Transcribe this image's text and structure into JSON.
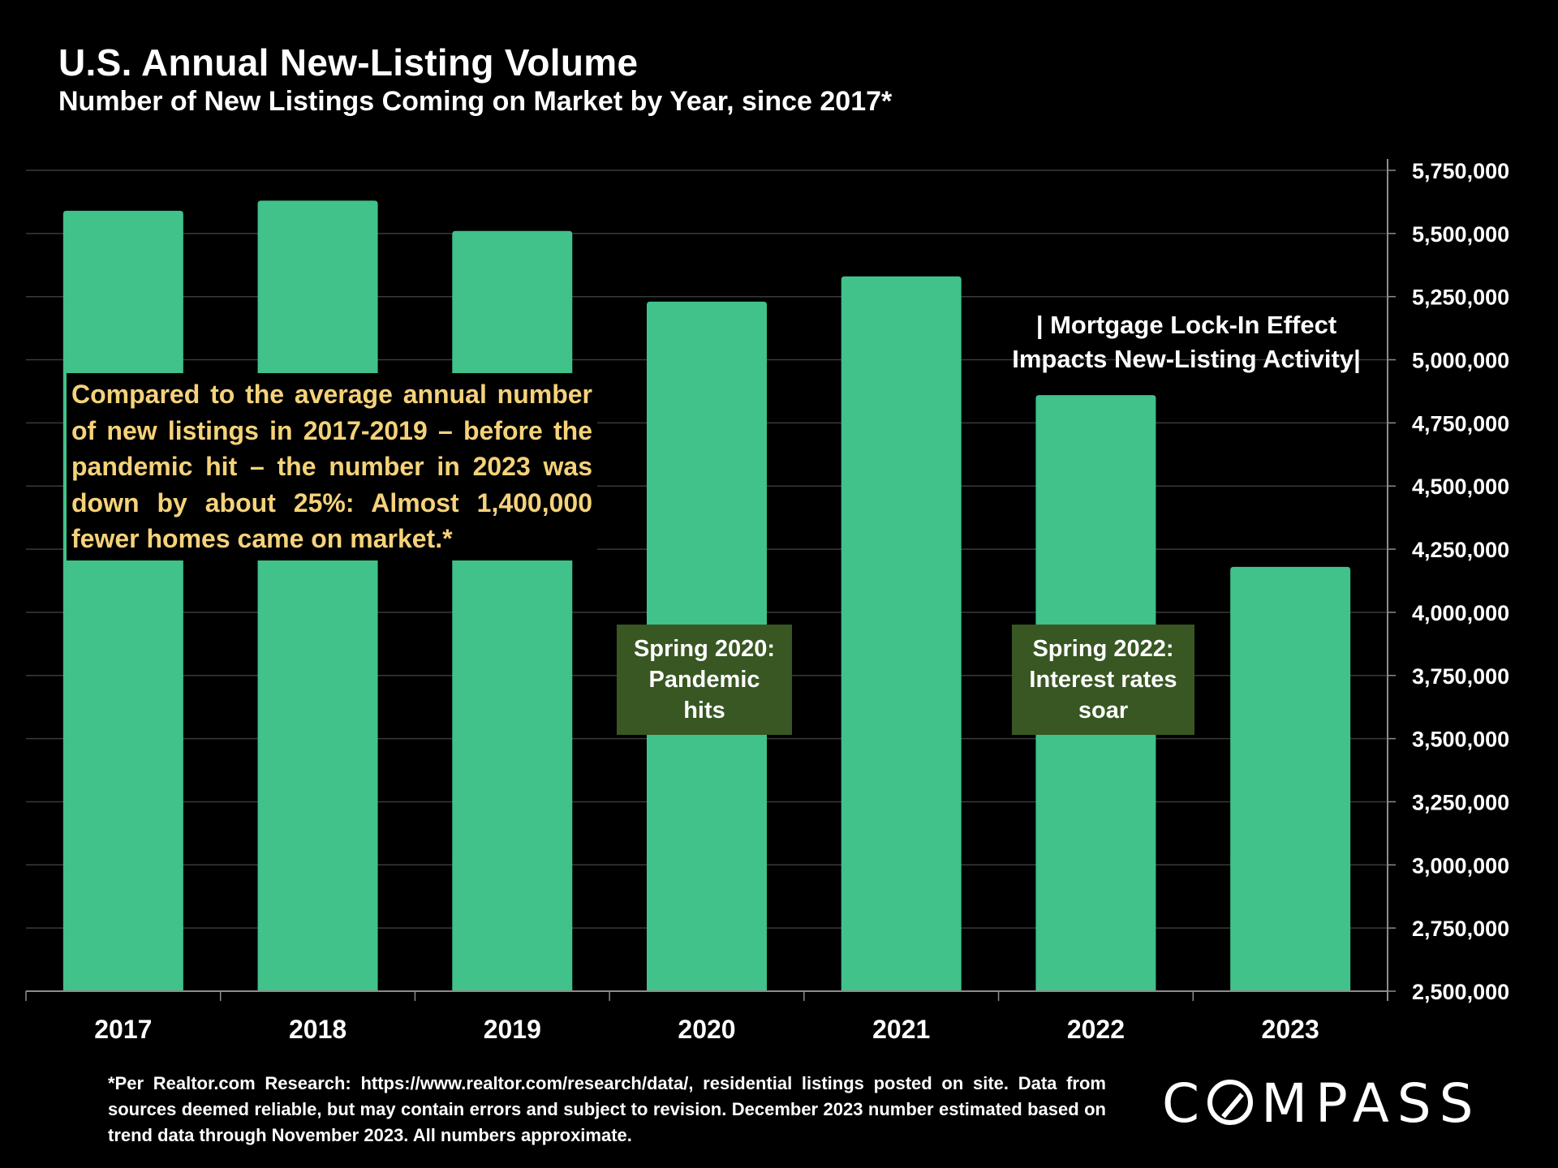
{
  "header": {
    "title": "U.S. Annual New-Listing Volume",
    "subtitle": "Number of New Listings Coming on Market by Year, since 2017*"
  },
  "chart_data": {
    "type": "bar",
    "categories": [
      "2017",
      "2018",
      "2019",
      "2020",
      "2021",
      "2022",
      "2023"
    ],
    "values": [
      5590000,
      5630000,
      5510000,
      5230000,
      5330000,
      4860000,
      4180000
    ],
    "ylim": [
      2500000,
      5750000
    ],
    "yticks": [
      2500000,
      2750000,
      3000000,
      3250000,
      3500000,
      3750000,
      4000000,
      4250000,
      4500000,
      4750000,
      5000000,
      5250000,
      5500000,
      5750000
    ],
    "ytick_labels": [
      "2,500,000",
      "2,750,000",
      "3,000,000",
      "3,250,000",
      "3,500,000",
      "3,750,000",
      "4,000,000",
      "4,250,000",
      "4,500,000",
      "4,750,000",
      "5,000,000",
      "5,250,000",
      "5,500,000",
      "5,750,000"
    ],
    "yaxis_side": "right",
    "grid": true,
    "bar_color": "#40c28a",
    "grid_color": "#3a3a3a",
    "xlabel": "",
    "ylabel": ""
  },
  "annotations": {
    "callout": "Compared to the average annual number of new listings in 2017-2019 – before the pandemic hit – the number in 2023 was down by about 25%: Almost 1,400,000 fewer homes came on market.*",
    "spring_2020": "Spring 2020:\nPandemic\nhits",
    "spring_2022": "Spring 2022:\nInterest rates\nsoar",
    "lock_in": "| Mortgage Lock-In Effect\nImpacts New-Listing Activity|"
  },
  "colors": {
    "callout_text": "#f5d27a",
    "note_box_bg": "#385723",
    "background": "#000000"
  },
  "footnote": "*Per Realtor.com Research:  https://www.realtor.com/research/data/, residential listings posted on site. Data from sources deemed reliable, but may contain errors and subject to revision. December 2023 number estimated based on trend data through November 2023. All numbers approximate.",
  "brand": {
    "logo_text_left": "C",
    "logo_text_right": "MPASS"
  }
}
